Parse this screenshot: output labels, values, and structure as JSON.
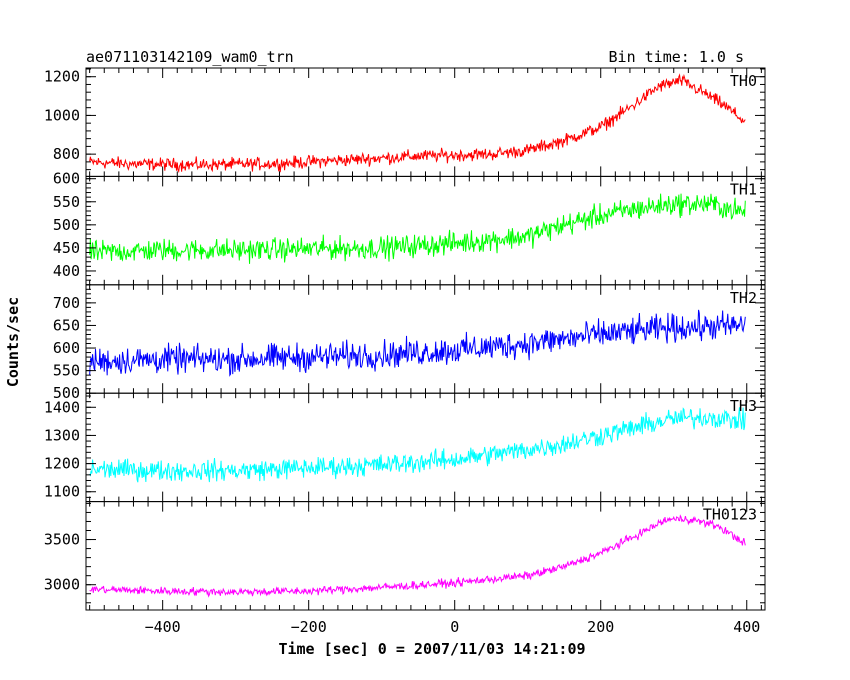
{
  "header": {
    "left_title": "ae071103142109_wam0_trn",
    "right_title": "Bin time: 1.0 s"
  },
  "chart_data": {
    "type": "line",
    "xlabel": "Time [sec] 0 = 2007/11/03 14:21:09",
    "ylabel": "Counts/sec",
    "xlim": [
      -505,
      425
    ],
    "xticks": [
      -400,
      -200,
      0,
      200,
      400
    ],
    "bin_time_s": 1.0,
    "panels": [
      {
        "name": "TH0",
        "color": "#ff0000",
        "ylim": [
          685,
          1245
        ],
        "yticks": [
          800,
          1000,
          1200
        ],
        "anchors": [
          [
            -500,
            760
          ],
          [
            -450,
            750
          ],
          [
            -350,
            745
          ],
          [
            -250,
            750
          ],
          [
            -150,
            770
          ],
          [
            -50,
            790
          ],
          [
            50,
            800
          ],
          [
            100,
            820
          ],
          [
            150,
            870
          ],
          [
            200,
            940
          ],
          [
            240,
            1040
          ],
          [
            280,
            1150
          ],
          [
            310,
            1180
          ],
          [
            340,
            1120
          ],
          [
            370,
            1050
          ],
          [
            400,
            960
          ]
        ],
        "noise": 40
      },
      {
        "name": "TH1",
        "color": "#00ff00",
        "ylim": [
          370,
          605
        ],
        "yticks": [
          400,
          450,
          500,
          550,
          600
        ],
        "anchors": [
          [
            -500,
            440
          ],
          [
            -400,
            445
          ],
          [
            -300,
            445
          ],
          [
            -200,
            448
          ],
          [
            -100,
            450
          ],
          [
            0,
            460
          ],
          [
            100,
            475
          ],
          [
            150,
            500
          ],
          [
            200,
            520
          ],
          [
            250,
            535
          ],
          [
            300,
            545
          ],
          [
            350,
            545
          ],
          [
            400,
            525
          ]
        ],
        "noise": 30
      },
      {
        "name": "TH2",
        "color": "#0000ff",
        "ylim": [
          500,
          740
        ],
        "yticks": [
          500,
          550,
          600,
          650,
          700
        ],
        "anchors": [
          [
            -500,
            570
          ],
          [
            -400,
            575
          ],
          [
            -300,
            575
          ],
          [
            -200,
            580
          ],
          [
            -100,
            585
          ],
          [
            0,
            595
          ],
          [
            100,
            610
          ],
          [
            200,
            630
          ],
          [
            300,
            645
          ],
          [
            400,
            650
          ]
        ],
        "noise": 38
      },
      {
        "name": "TH3",
        "color": "#00ffff",
        "ylim": [
          1065,
          1450
        ],
        "yticks": [
          1100,
          1200,
          1300,
          1400
        ],
        "anchors": [
          [
            -500,
            1180
          ],
          [
            -400,
            1175
          ],
          [
            -300,
            1175
          ],
          [
            -200,
            1185
          ],
          [
            -100,
            1195
          ],
          [
            0,
            1215
          ],
          [
            100,
            1250
          ],
          [
            150,
            1270
          ],
          [
            200,
            1300
          ],
          [
            250,
            1330
          ],
          [
            300,
            1360
          ],
          [
            350,
            1365
          ],
          [
            400,
            1350
          ]
        ],
        "noise": 45
      },
      {
        "name": "TH0123",
        "color": "#ff00ff",
        "ylim": [
          2720,
          3920
        ],
        "yticks": [
          3000,
          3500
        ],
        "anchors": [
          [
            -500,
            2950
          ],
          [
            -400,
            2930
          ],
          [
            -300,
            2920
          ],
          [
            -200,
            2930
          ],
          [
            -100,
            2970
          ],
          [
            0,
            3020
          ],
          [
            100,
            3100
          ],
          [
            150,
            3200
          ],
          [
            200,
            3350
          ],
          [
            250,
            3550
          ],
          [
            290,
            3720
          ],
          [
            320,
            3730
          ],
          [
            360,
            3650
          ],
          [
            400,
            3450
          ]
        ],
        "noise": 55
      }
    ]
  }
}
